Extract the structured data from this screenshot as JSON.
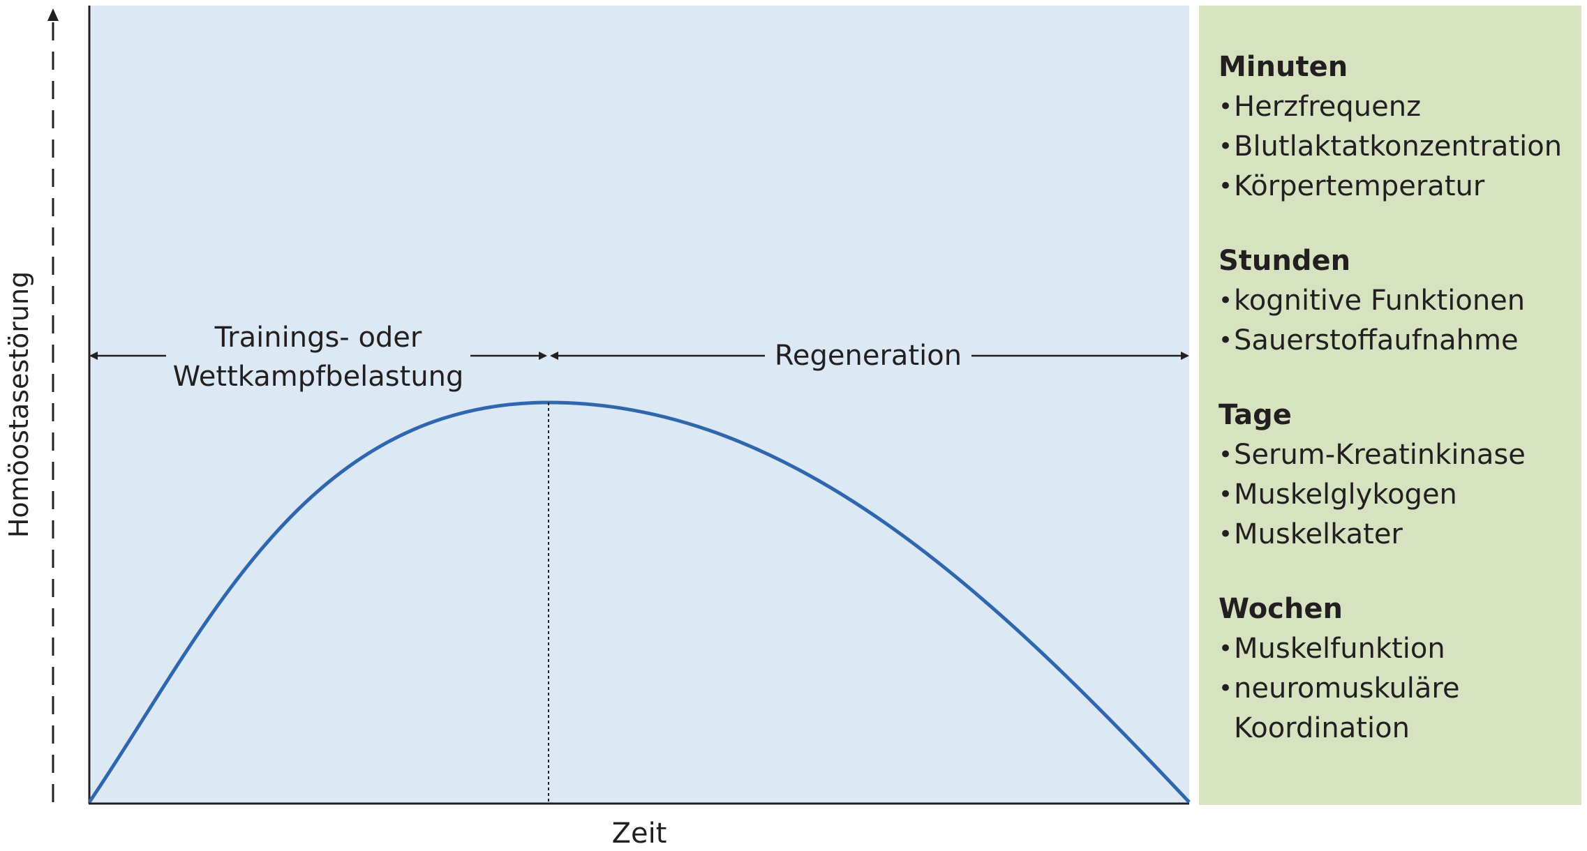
{
  "diagram": {
    "y_axis_label": "Homöostasestörung",
    "x_axis_label": "Zeit",
    "phase_load_line1": "Trainings- oder",
    "phase_load_line2": "Wettkampfbelastung",
    "phase_recovery": "Regeneration"
  },
  "colors": {
    "plot_background": "#dce8f3",
    "curve": "#2e67ad",
    "panel_background": "#d7e3c0",
    "text": "#231f20"
  },
  "timescales": [
    {
      "title": "Minuten",
      "items": [
        "Herzfrequenz",
        "Blutlaktatkonzentration",
        "Körpertemperatur"
      ]
    },
    {
      "title": "Stunden",
      "items": [
        "kognitive Funktionen",
        "Sauerstoffaufnahme"
      ]
    },
    {
      "title": "Tage",
      "items": [
        "Serum-Kreatinkinase",
        "Muskelglykogen",
        "Muskelkater"
      ]
    },
    {
      "title": "Wochen",
      "items": [
        "Muskelfunktion",
        "neuromuskuläre Koordination"
      ]
    }
  ]
}
